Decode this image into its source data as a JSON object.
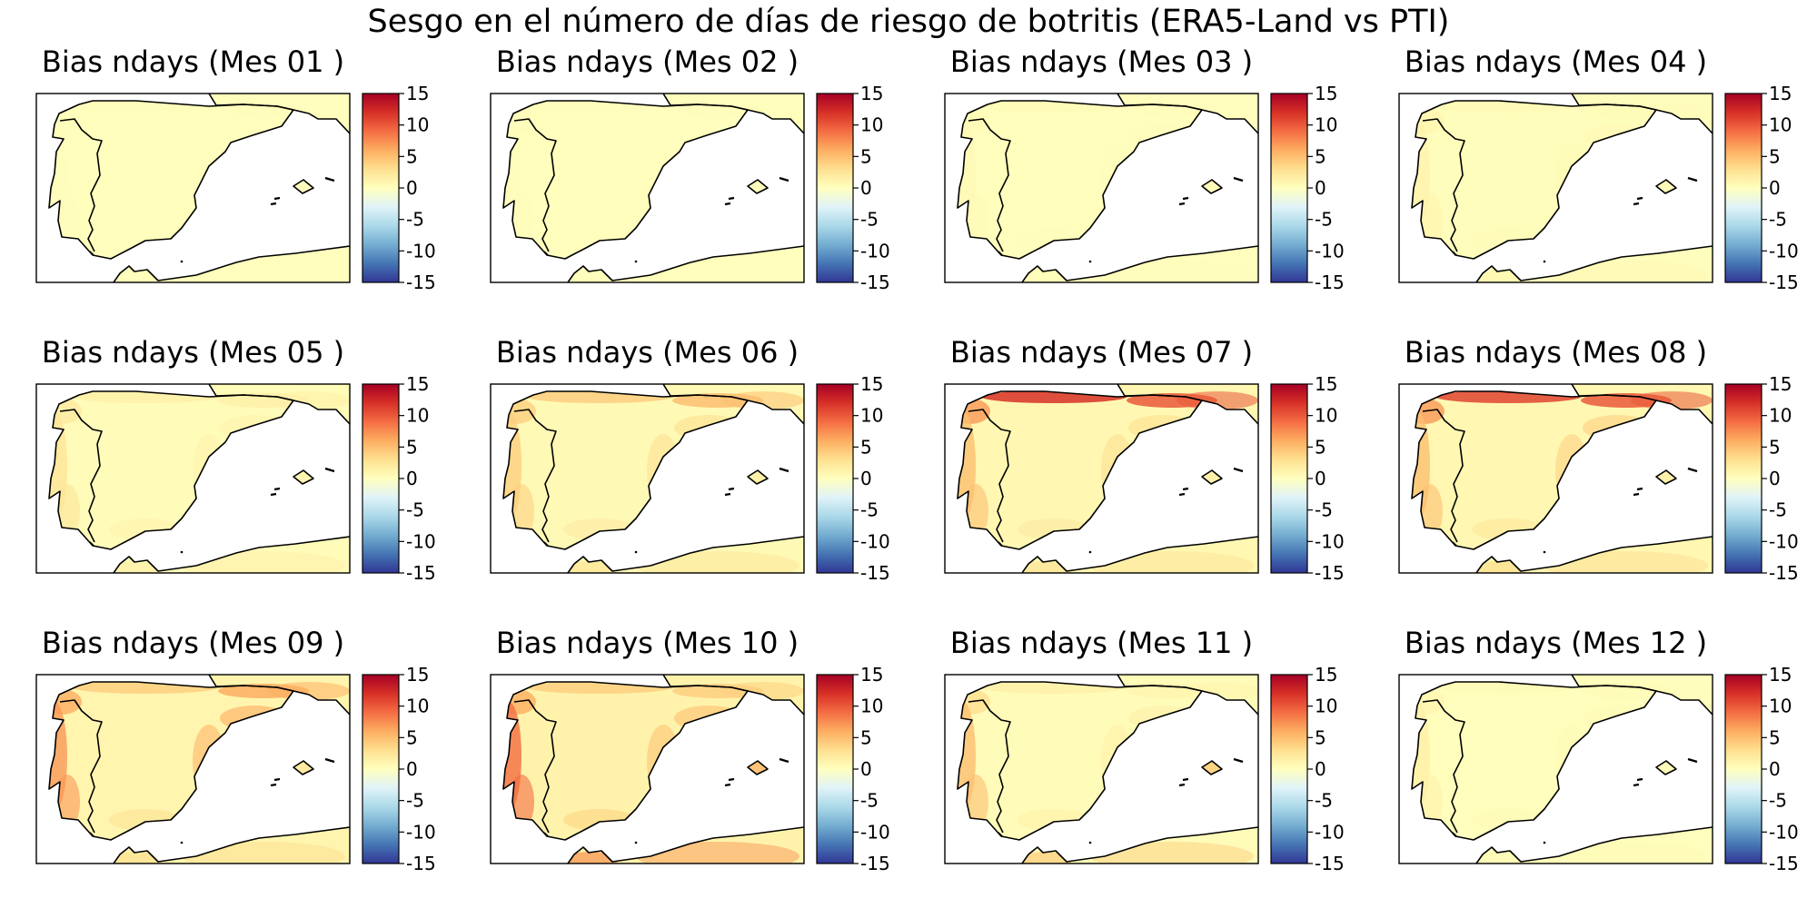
{
  "figure_title": "Sesgo en el número de días de riesgo de botritis (ERA5-Land vs PTI)",
  "colormap": [
    "#313695",
    "#4575b4",
    "#74add1",
    "#abd9e9",
    "#e0f3f8",
    "#ffffbf",
    "#fee090",
    "#fdae61",
    "#f46d43",
    "#d73027",
    "#a50026"
  ],
  "colors": {
    "land_zero": "#fdfbbf",
    "coast": "#000000",
    "frame": "#000000"
  },
  "chart_data": [
    {
      "type": "heatmap",
      "title": "Bias ndays (Mes 01 )",
      "colorbar": {
        "ticks": [
          15,
          10,
          5,
          0,
          -5,
          -10,
          -15
        ],
        "range": [
          -15,
          15
        ]
      },
      "regions": {
        "galicia_coast": 0.3,
        "cantabrian": 0.2,
        "portugal_coast": 0.3,
        "east_coast": 0.2,
        "south_coast": 0.2,
        "north_border": 0.2,
        "interior": 0.1,
        "africa": 0.2,
        "balearic": 0.2
      }
    },
    {
      "type": "heatmap",
      "title": "Bias ndays (Mes 02 )",
      "colorbar": {
        "ticks": [
          15,
          10,
          5,
          0,
          -5,
          -10,
          -15
        ],
        "range": [
          -15,
          15
        ]
      },
      "regions": {
        "galicia_coast": 0.3,
        "cantabrian": 0.2,
        "portugal_coast": 0.3,
        "east_coast": 0.2,
        "south_coast": 0.2,
        "north_border": 0.2,
        "interior": 0.1,
        "africa": 0.2,
        "balearic": 0.2
      }
    },
    {
      "type": "heatmap",
      "title": "Bias ndays (Mes 03 )",
      "colorbar": {
        "ticks": [
          15,
          10,
          5,
          0,
          -5,
          -10,
          -15
        ],
        "range": [
          -15,
          15
        ]
      },
      "regions": {
        "galicia_coast": 0.5,
        "cantabrian": 0.3,
        "portugal_coast": 0.6,
        "east_coast": 0.3,
        "south_coast": 0.3,
        "north_border": 0.2,
        "interior": 0.1,
        "africa": 0.3,
        "balearic": 0.3
      }
    },
    {
      "type": "heatmap",
      "title": "Bias ndays (Mes 04 )",
      "colorbar": {
        "ticks": [
          15,
          10,
          5,
          0,
          -5,
          -10,
          -15
        ],
        "range": [
          -15,
          15
        ]
      },
      "regions": {
        "galicia_coast": 1.0,
        "cantabrian": 0.6,
        "portugal_coast": 1.2,
        "east_coast": 0.6,
        "south_coast": 0.6,
        "north_border": 0.4,
        "interior": 0.2,
        "africa": 0.8,
        "balearic": 0.5
      }
    },
    {
      "type": "heatmap",
      "title": "Bias ndays (Mes 05 )",
      "colorbar": {
        "ticks": [
          15,
          10,
          5,
          0,
          -5,
          -10,
          -15
        ],
        "range": [
          -15,
          15
        ]
      },
      "regions": {
        "galicia_coast": 2.0,
        "cantabrian": 1.5,
        "portugal_coast": 2.5,
        "east_coast": 1.2,
        "south_coast": 1.2,
        "north_border": 1.5,
        "interior": 0.4,
        "africa": 1.5,
        "balearic": 1.0
      }
    },
    {
      "type": "heatmap",
      "title": "Bias ndays (Mes 06 )",
      "colorbar": {
        "ticks": [
          15,
          10,
          5,
          0,
          -5,
          -10,
          -15
        ],
        "range": [
          -15,
          15
        ]
      },
      "regions": {
        "galicia_coast": 4.0,
        "cantabrian": 4.0,
        "portugal_coast": 4.0,
        "east_coast": 3.0,
        "south_coast": 2.0,
        "north_border": 5.0,
        "interior": 0.6,
        "africa": 2.5,
        "balearic": 1.5
      }
    },
    {
      "type": "heatmap",
      "title": "Bias ndays (Mes 07 )",
      "colorbar": {
        "ticks": [
          15,
          10,
          5,
          0,
          -5,
          -10,
          -15
        ],
        "range": [
          -15,
          15
        ]
      },
      "regions": {
        "galicia_coast": 7.0,
        "cantabrian": 12.0,
        "portugal_coast": 5.0,
        "east_coast": 3.0,
        "south_coast": 2.0,
        "north_border": 10.0,
        "interior": 0.8,
        "africa": 2.5,
        "balearic": 1.5
      }
    },
    {
      "type": "heatmap",
      "title": "Bias ndays (Mes 08 )",
      "colorbar": {
        "ticks": [
          15,
          10,
          5,
          0,
          -5,
          -10,
          -15
        ],
        "range": [
          -15,
          15
        ]
      },
      "regions": {
        "galicia_coast": 7.0,
        "cantabrian": 11.0,
        "portugal_coast": 5.0,
        "east_coast": 4.0,
        "south_coast": 2.5,
        "north_border": 10.0,
        "interior": 0.8,
        "africa": 3.0,
        "balearic": 1.5
      }
    },
    {
      "type": "heatmap",
      "title": "Bias ndays (Mes 09 )",
      "colorbar": {
        "ticks": [
          15,
          10,
          5,
          0,
          -5,
          -10,
          -15
        ],
        "range": [
          -15,
          15
        ]
      },
      "regions": {
        "galicia_coast": 6.0,
        "cantabrian": 4.0,
        "portugal_coast": 7.0,
        "east_coast": 6.0,
        "south_coast": 3.0,
        "north_border": 6.0,
        "interior": 1.0,
        "africa": 3.0,
        "balearic": 2.0
      }
    },
    {
      "type": "heatmap",
      "title": "Bias ndays (Mes 10 )",
      "colorbar": {
        "ticks": [
          15,
          10,
          5,
          0,
          -5,
          -10,
          -15
        ],
        "range": [
          -15,
          15
        ]
      },
      "regions": {
        "galicia_coast": 6.0,
        "cantabrian": 4.0,
        "portugal_coast": 9.0,
        "east_coast": 5.0,
        "south_coast": 4.0,
        "north_border": 4.0,
        "interior": 1.2,
        "africa": 7.0,
        "balearic": 5.0
      }
    },
    {
      "type": "heatmap",
      "title": "Bias ndays (Mes 11 )",
      "colorbar": {
        "ticks": [
          15,
          10,
          5,
          0,
          -5,
          -10,
          -15
        ],
        "range": [
          -15,
          15
        ]
      },
      "regions": {
        "galicia_coast": 3.0,
        "cantabrian": 1.5,
        "portugal_coast": 5.0,
        "east_coast": 1.5,
        "south_coast": 1.5,
        "north_border": 1.0,
        "interior": 0.4,
        "africa": 4.0,
        "balearic": 4.0
      }
    },
    {
      "type": "heatmap",
      "title": "Bias ndays (Mes 12 )",
      "colorbar": {
        "ticks": [
          15,
          10,
          5,
          0,
          -5,
          -10,
          -15
        ],
        "range": [
          -15,
          15
        ]
      },
      "regions": {
        "galicia_coast": 1.0,
        "cantabrian": 0.5,
        "portugal_coast": 1.5,
        "east_coast": 0.5,
        "south_coast": 0.5,
        "north_border": 0.3,
        "interior": 0.1,
        "africa": 0.5,
        "balearic": 0.3
      }
    }
  ]
}
